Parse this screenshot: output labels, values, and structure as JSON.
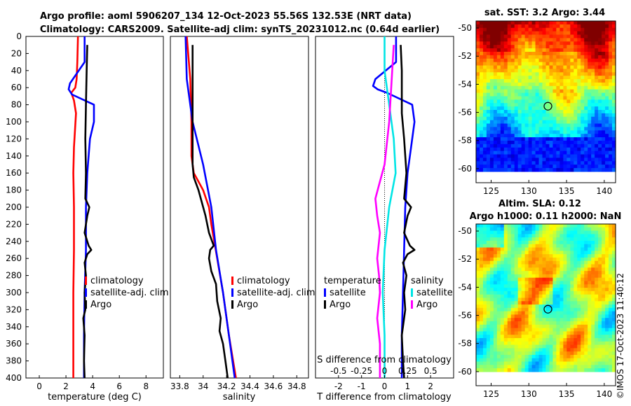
{
  "figure": {
    "title_line1": "Argo profile: aoml 5906207_134 12-Oct-2023 55.56S 132.53E (NRT data)",
    "title_line2": "Climatology: CARS2009. Satellite-adj clim: synTS_20231012.nc (0.64d earlier)",
    "watermark": "©IMOS 17-Oct-2023 11:40:12",
    "colors": {
      "climatology": "#ff0000",
      "satellite": "#0000ff",
      "argo": "#000000",
      "t_sat": "#0000ff",
      "s_sat": "#00e5e5",
      "s_argo": "#ff00ff"
    }
  },
  "chart_data": [
    {
      "type": "line",
      "name": "temperature",
      "xlabel": "temperature (deg C)",
      "ylabel": "depth",
      "xlim": [
        -1,
        9.3
      ],
      "ylim": [
        400,
        0
      ],
      "x_ticks": [
        "0",
        "2",
        "4",
        "6",
        "8"
      ],
      "x_tick_values": [
        0,
        2,
        4,
        6,
        8
      ],
      "y_ticks": [
        "0",
        "20",
        "40",
        "60",
        "80",
        "100",
        "120",
        "140",
        "160",
        "180",
        "200",
        "220",
        "240",
        "260",
        "280",
        "300",
        "320",
        "340",
        "360",
        "380",
        "400"
      ],
      "y_tick_values": [
        0,
        20,
        40,
        60,
        80,
        100,
        120,
        140,
        160,
        180,
        200,
        220,
        240,
        260,
        280,
        300,
        320,
        340,
        360,
        380,
        400
      ],
      "legend": {
        "entries": [
          "climatology",
          "satellite-adj. clim",
          "Argo"
        ],
        "position": "lower-right"
      },
      "series": [
        {
          "name": "climatology",
          "depth": [
            0,
            30,
            50,
            60,
            66,
            75,
            90,
            130,
            160,
            200,
            250,
            300,
            350,
            400
          ],
          "values": [
            2.9,
            2.85,
            2.8,
            2.7,
            2.4,
            2.6,
            2.75,
            2.6,
            2.55,
            2.6,
            2.6,
            2.55,
            2.55,
            2.55
          ]
        },
        {
          "name": "satellite-adj. clim",
          "depth": [
            0,
            30,
            55,
            62,
            68,
            80,
            100,
            120,
            160,
            200,
            250,
            300,
            350,
            400
          ],
          "values": [
            3.4,
            3.4,
            2.3,
            2.2,
            2.45,
            4.1,
            4.1,
            3.8,
            3.6,
            3.5,
            3.5,
            3.4,
            3.35,
            3.35
          ]
        },
        {
          "name": "Argo",
          "depth": [
            10,
            40,
            80,
            120,
            160,
            190,
            200,
            210,
            230,
            245,
            250,
            255,
            265,
            280,
            300,
            320,
            330,
            350,
            380,
            400
          ],
          "values": [
            3.6,
            3.55,
            3.5,
            3.45,
            3.5,
            3.45,
            3.75,
            3.6,
            3.4,
            3.7,
            3.9,
            3.6,
            3.4,
            3.5,
            3.4,
            3.45,
            3.3,
            3.4,
            3.35,
            3.4
          ]
        }
      ]
    },
    {
      "type": "line",
      "name": "salinity",
      "xlabel": "salinity",
      "xlim": [
        33.72,
        34.9
      ],
      "ylim": [
        400,
        0
      ],
      "x_ticks": [
        "33.8",
        "34",
        "34.2",
        "34.4",
        "34.6",
        "34.8"
      ],
      "x_tick_values": [
        33.8,
        34.0,
        34.2,
        34.4,
        34.6,
        34.8
      ],
      "legend": {
        "entries": [
          "climatology",
          "satellite-adj. clim",
          "Argo"
        ],
        "position": "lower-right"
      },
      "series": [
        {
          "name": "climatology",
          "depth": [
            0,
            50,
            100,
            140,
            160,
            170,
            180,
            200,
            220,
            260,
            300,
            350,
            400
          ],
          "values": [
            33.86,
            33.89,
            33.9,
            33.9,
            33.92,
            33.96,
            34.0,
            34.05,
            34.07,
            34.12,
            34.17,
            34.22,
            34.28
          ]
        },
        {
          "name": "satellite-adj. clim",
          "depth": [
            0,
            50,
            100,
            150,
            200,
            250,
            300,
            350,
            400
          ],
          "values": [
            33.85,
            33.86,
            33.91,
            34.0,
            34.07,
            34.11,
            34.17,
            34.22,
            34.27
          ]
        },
        {
          "name": "Argo",
          "depth": [
            10,
            80,
            150,
            165,
            180,
            195,
            210,
            230,
            245,
            250,
            260,
            275,
            290,
            310,
            330,
            345,
            360,
            380,
            400
          ],
          "values": [
            33.91,
            33.91,
            33.91,
            33.92,
            33.96,
            33.99,
            34.02,
            34.05,
            34.09,
            34.06,
            34.05,
            34.07,
            34.11,
            34.12,
            34.15,
            34.14,
            34.17,
            34.19,
            34.21
          ]
        }
      ]
    },
    {
      "type": "line",
      "name": "difference from climatology",
      "xlabel": "T difference from climatology",
      "xlabel_top": "S difference from climatology",
      "xlim": [
        -3,
        3
      ],
      "ylim": [
        400,
        0
      ],
      "x_ticks": [
        "-2",
        "-1",
        "0",
        "1",
        "2"
      ],
      "x_tick_values": [
        -2,
        -1,
        0,
        1,
        2
      ],
      "s_ticks": [
        "-0.5",
        "-0.25",
        "0",
        "0.25",
        "0.5"
      ],
      "s_tick_values": [
        -0.5,
        -0.25,
        0,
        0.25,
        0.5
      ],
      "legend_left": {
        "title": "temperature",
        "entries": [
          "satellite",
          "Argo"
        ]
      },
      "legend_right": {
        "title": "salinity",
        "entries": [
          "satellite",
          "Argo"
        ]
      },
      "series": [
        {
          "name": "T satellite",
          "depth": [
            0,
            30,
            50,
            58,
            62,
            66,
            80,
            100,
            130,
            160,
            200,
            250,
            300,
            350,
            400
          ],
          "values": [
            0.5,
            0.5,
            -0.4,
            -0.5,
            -0.3,
            0.1,
            1.2,
            1.3,
            1.15,
            1.0,
            0.9,
            0.85,
            0.8,
            0.75,
            0.75
          ]
        },
        {
          "name": "T Argo",
          "depth": [
            10,
            40,
            70,
            90,
            120,
            160,
            190,
            200,
            210,
            230,
            245,
            250,
            255,
            265,
            280,
            300,
            320,
            350,
            380,
            400
          ],
          "values": [
            0.7,
            0.75,
            0.75,
            0.75,
            0.85,
            0.95,
            0.85,
            1.15,
            1.0,
            0.85,
            1.1,
            1.3,
            1.0,
            0.8,
            0.95,
            0.85,
            0.9,
            0.75,
            0.8,
            0.85
          ]
        },
        {
          "name": "S satellite",
          "depth": [
            0,
            40,
            80,
            120,
            160,
            200,
            250,
            300,
            350,
            400
          ],
          "values": [
            0.0,
            0.0,
            0.05,
            0.1,
            0.12,
            0.05,
            0.0,
            -0.02,
            0.0,
            0.0
          ]
        },
        {
          "name": "S Argo",
          "depth": [
            10,
            100,
            150,
            170,
            190,
            210,
            230,
            260,
            280,
            300,
            330,
            360,
            400
          ],
          "values": [
            0.1,
            0.05,
            0.0,
            -0.05,
            -0.1,
            -0.08,
            -0.05,
            -0.08,
            -0.06,
            -0.05,
            -0.08,
            -0.05,
            -0.05
          ]
        }
      ]
    },
    {
      "type": "heatmap",
      "name": "sat. SST",
      "title": "sat. SST: 3.2 Argo: 3.44",
      "xlim": [
        123,
        141.5
      ],
      "ylim": [
        -61,
        -49.5
      ],
      "x_ticks": [
        "125",
        "130",
        "135",
        "140"
      ],
      "x_tick_values": [
        125,
        130,
        135,
        140
      ],
      "y_ticks": [
        "-50",
        "-52",
        "-54",
        "-56",
        "-58",
        "-60"
      ],
      "y_tick_values": [
        -50,
        -52,
        -54,
        -56,
        -58,
        -60
      ],
      "marker": {
        "lon": 132.53,
        "lat": -55.56
      }
    },
    {
      "type": "heatmap",
      "name": "Altim. SLA",
      "title_line1": "Altim. SLA: 0.12",
      "title_line2": "Argo h1000: 0.11 h2000: NaN",
      "xlim": [
        123,
        141.5
      ],
      "ylim": [
        -61,
        -49.5
      ],
      "x_ticks": [
        "125",
        "130",
        "135",
        "140"
      ],
      "x_tick_values": [
        125,
        130,
        135,
        140
      ],
      "y_ticks": [
        "-50",
        "-52",
        "-54",
        "-56",
        "-58",
        "-60"
      ],
      "y_tick_values": [
        -50,
        -52,
        -54,
        -56,
        -58,
        -60
      ],
      "marker": {
        "lon": 132.53,
        "lat": -55.56
      }
    }
  ]
}
